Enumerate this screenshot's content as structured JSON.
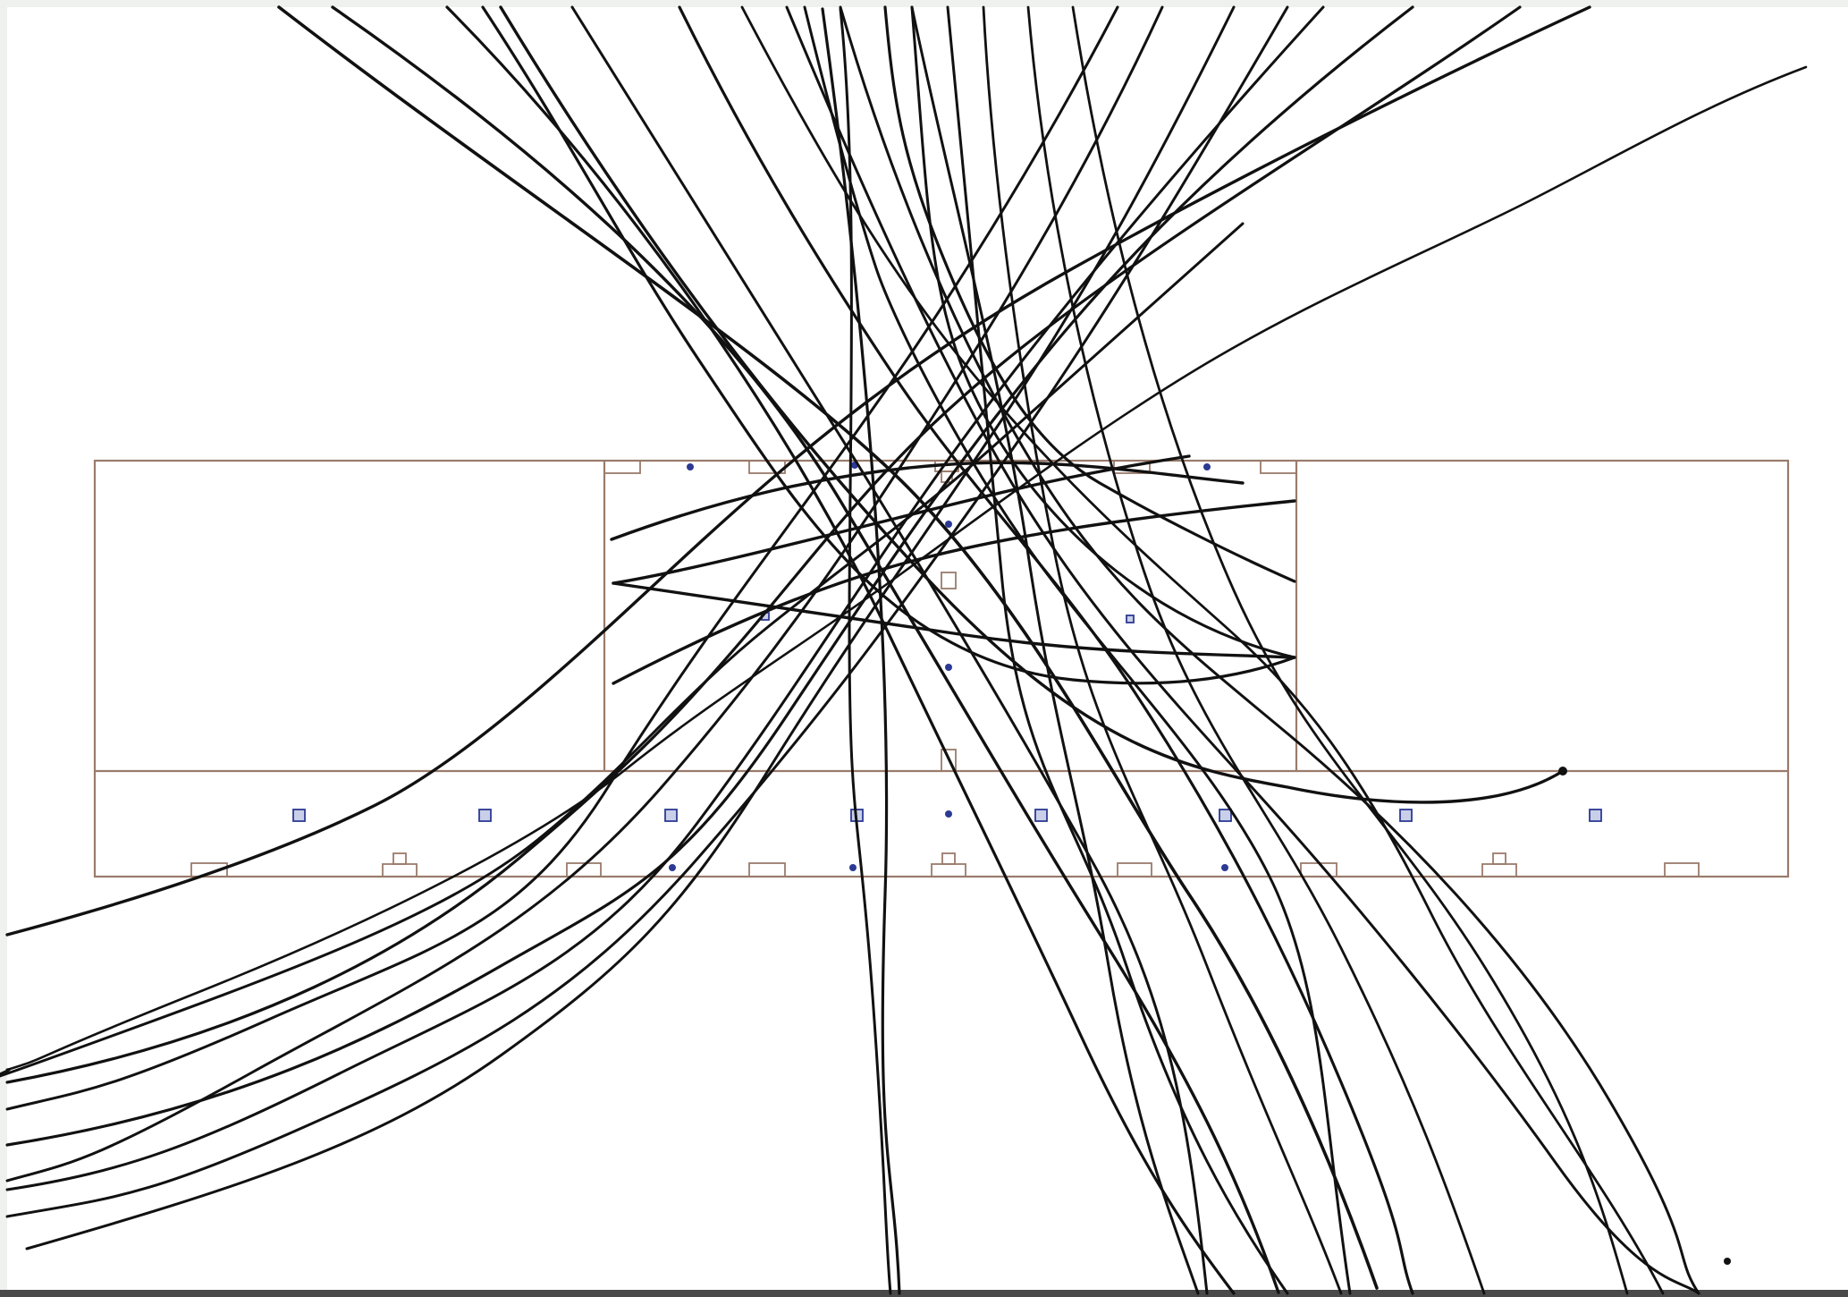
{
  "colors": {
    "paper": "#ffffff",
    "paper_edge": "#eef1ee",
    "plan_line": "#9a7b6b",
    "fixture_blue": "#2c3a94",
    "fixture_blue_fill": "#c9cfe9",
    "ink": "#111111",
    "margin_shadow": "#4a4a4a"
  },
  "symbols": {
    "plan": "floor-plan-outline",
    "strokes": "freehand-ink-curves",
    "markers": "blue-square-markers",
    "dots": "blue-dot-markers"
  }
}
